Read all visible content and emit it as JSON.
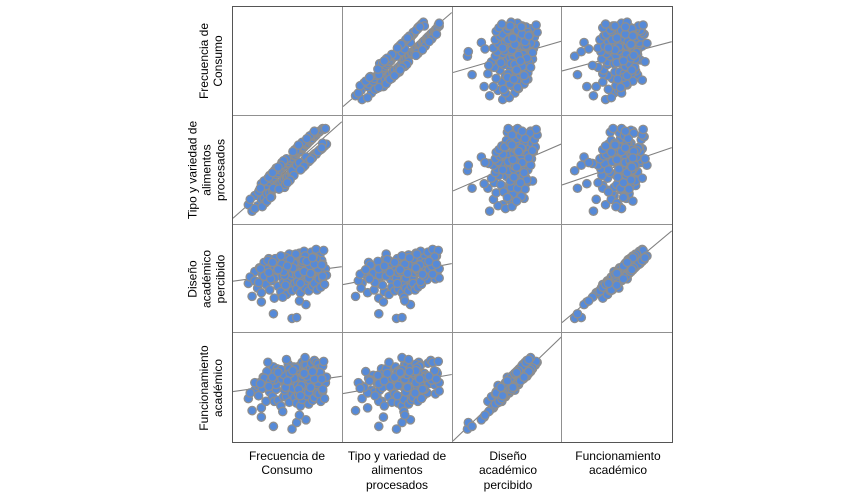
{
  "figure": {
    "row_labels": [
      "Frecuencia de\nConsumo",
      "Tipo y variedad de\nalimentos\nprocesados",
      "Diseño\nacadémico\npercibido",
      "Funcionamiento\nacadémico"
    ],
    "col_labels": [
      "Frecuencia de\nConsumo",
      "Tipo y variedad de\nalimentos\nprocesados",
      "Diseño\nacadémico\npercibido",
      "Funcionamiento\nacadémico"
    ],
    "style": {
      "dot_fill": "#568ad8",
      "dot_stroke": "#8e8e8e",
      "fit_line": "#808080",
      "inner_grid": "#909090",
      "outer_frame": "#555555",
      "label_color": "#000000",
      "background": "#ffffff"
    }
  },
  "chart_data": {
    "type": "scatter",
    "subtype": "scatterplot-matrix",
    "title": "",
    "variables": [
      "Frecuencia de Consumo",
      "Tipo y variedad de alimentos procesados",
      "Diseño académico percibido",
      "Funcionamiento académico"
    ],
    "diagonal": "empty",
    "fit": "linear regression line per off-diagonal panel",
    "axes": {
      "ticks": "none",
      "value_scale": "normalized 0-1 per panel (no tick labels shown)"
    },
    "legend": "none",
    "correlation_summary": {
      "frecuencia_vs_tipo": "strong positive (~0.8)",
      "diseno_vs_funcionamiento": "strong positive (~0.75)",
      "cross_block_pairs": "near zero, slightly positive (flat fit lines)"
    },
    "n": 150,
    "observations": [
      [
        0.08,
        0.12,
        0.45,
        0.38
      ],
      [
        0.12,
        0.05,
        0.31,
        0.25
      ],
      [
        0.15,
        0.22,
        0.58,
        0.47
      ],
      [
        0.18,
        0.11,
        0.4,
        0.52
      ],
      [
        0.2,
        0.28,
        0.62,
        0.55
      ],
      [
        0.22,
        0.18,
        0.35,
        0.28
      ],
      [
        0.24,
        0.3,
        0.5,
        0.61
      ],
      [
        0.25,
        0.19,
        0.68,
        0.6
      ],
      [
        0.27,
        0.33,
        0.44,
        0.35
      ],
      [
        0.28,
        0.24,
        0.56,
        0.63
      ],
      [
        0.3,
        0.37,
        0.72,
        0.64
      ],
      [
        0.31,
        0.25,
        0.38,
        0.45
      ],
      [
        0.33,
        0.4,
        0.6,
        0.52
      ],
      [
        0.34,
        0.28,
        0.48,
        0.4
      ],
      [
        0.35,
        0.42,
        0.66,
        0.72
      ],
      [
        0.36,
        0.3,
        0.29,
        0.35
      ],
      [
        0.38,
        0.45,
        0.55,
        0.48
      ],
      [
        0.39,
        0.33,
        0.63,
        0.7
      ],
      [
        0.4,
        0.47,
        0.42,
        0.36
      ],
      [
        0.41,
        0.35,
        0.58,
        0.65
      ],
      [
        0.42,
        0.5,
        0.7,
        0.63
      ],
      [
        0.43,
        0.36,
        0.36,
        0.3
      ],
      [
        0.44,
        0.52,
        0.52,
        0.58
      ],
      [
        0.45,
        0.38,
        0.64,
        0.57
      ],
      [
        0.46,
        0.54,
        0.46,
        0.4
      ],
      [
        0.47,
        0.4,
        0.59,
        0.66
      ],
      [
        0.48,
        0.55,
        0.74,
        0.68
      ],
      [
        0.49,
        0.41,
        0.33,
        0.4
      ],
      [
        0.5,
        0.57,
        0.57,
        0.5
      ],
      [
        0.5,
        0.43,
        0.49,
        0.56
      ],
      [
        0.51,
        0.58,
        0.68,
        0.75
      ],
      [
        0.52,
        0.44,
        0.41,
        0.34
      ],
      [
        0.53,
        0.6,
        0.61,
        0.55
      ],
      [
        0.54,
        0.46,
        0.53,
        0.6
      ],
      [
        0.55,
        0.62,
        0.76,
        0.7
      ],
      [
        0.55,
        0.47,
        0.37,
        0.43
      ],
      [
        0.56,
        0.63,
        0.56,
        0.49
      ],
      [
        0.57,
        0.48,
        0.65,
        0.72
      ],
      [
        0.58,
        0.65,
        0.45,
        0.39
      ],
      [
        0.58,
        0.5,
        0.6,
        0.67
      ],
      [
        0.59,
        0.66,
        0.71,
        0.62
      ],
      [
        0.6,
        0.51,
        0.39,
        0.33
      ],
      [
        0.6,
        0.68,
        0.54,
        0.6
      ],
      [
        0.61,
        0.52,
        0.67,
        0.59
      ],
      [
        0.62,
        0.69,
        0.47,
        0.42
      ],
      [
        0.62,
        0.53,
        0.62,
        0.69
      ],
      [
        0.63,
        0.7,
        0.78,
        0.73
      ],
      [
        0.64,
        0.55,
        0.35,
        0.3
      ],
      [
        0.64,
        0.71,
        0.58,
        0.52
      ],
      [
        0.65,
        0.56,
        0.5,
        0.57
      ],
      [
        0.66,
        0.73,
        0.69,
        0.77
      ],
      [
        0.66,
        0.57,
        0.43,
        0.37
      ],
      [
        0.67,
        0.74,
        0.63,
        0.56
      ],
      [
        0.68,
        0.58,
        0.55,
        0.62
      ],
      [
        0.68,
        0.75,
        0.8,
        0.74
      ],
      [
        0.69,
        0.59,
        0.4,
        0.46
      ],
      [
        0.7,
        0.77,
        0.59,
        0.51
      ],
      [
        0.7,
        0.6,
        0.66,
        0.74
      ],
      [
        0.71,
        0.78,
        0.48,
        0.41
      ],
      [
        0.72,
        0.61,
        0.61,
        0.68
      ],
      [
        0.72,
        0.79,
        0.73,
        0.65
      ],
      [
        0.73,
        0.62,
        0.37,
        0.32
      ],
      [
        0.74,
        0.81,
        0.56,
        0.63
      ],
      [
        0.74,
        0.63,
        0.68,
        0.61
      ],
      [
        0.75,
        0.82,
        0.49,
        0.44
      ],
      [
        0.75,
        0.64,
        0.64,
        0.71
      ],
      [
        0.76,
        0.83,
        0.79,
        0.76
      ],
      [
        0.77,
        0.65,
        0.42,
        0.36
      ],
      [
        0.77,
        0.84,
        0.6,
        0.54
      ],
      [
        0.78,
        0.66,
        0.52,
        0.59
      ],
      [
        0.79,
        0.86,
        0.71,
        0.79
      ],
      [
        0.79,
        0.67,
        0.45,
        0.39
      ],
      [
        0.8,
        0.87,
        0.65,
        0.58
      ],
      [
        0.8,
        0.68,
        0.57,
        0.64
      ],
      [
        0.81,
        0.88,
        0.82,
        0.77
      ],
      [
        0.82,
        0.69,
        0.38,
        0.44
      ],
      [
        0.82,
        0.9,
        0.62,
        0.53
      ],
      [
        0.83,
        0.7,
        0.67,
        0.75
      ],
      [
        0.84,
        0.91,
        0.5,
        0.43
      ],
      [
        0.84,
        0.71,
        0.63,
        0.7
      ],
      [
        0.85,
        0.92,
        0.75,
        0.67
      ],
      [
        0.86,
        0.72,
        0.41,
        0.35
      ],
      [
        0.86,
        0.93,
        0.58,
        0.65
      ],
      [
        0.87,
        0.73,
        0.7,
        0.62
      ],
      [
        0.88,
        0.95,
        0.51,
        0.46
      ],
      [
        0.88,
        0.74,
        0.66,
        0.73
      ],
      [
        0.89,
        0.94,
        0.81,
        0.78
      ],
      [
        0.9,
        0.76,
        0.44,
        0.38
      ],
      [
        0.91,
        0.95,
        0.61,
        0.55
      ],
      [
        0.92,
        0.78,
        0.54,
        0.61
      ],
      [
        0.1,
        0.18,
        0.52,
        0.44
      ],
      [
        0.55,
        0.49,
        0.07,
        0.05
      ],
      [
        0.6,
        0.55,
        0.08,
        0.12
      ],
      [
        0.35,
        0.3,
        0.12,
        0.08
      ],
      [
        0.22,
        0.35,
        0.25,
        0.18
      ],
      [
        0.7,
        0.64,
        0.22,
        0.15
      ],
      [
        0.15,
        0.08,
        0.48,
        0.55
      ],
      [
        0.45,
        0.57,
        0.3,
        0.24
      ],
      [
        0.52,
        0.38,
        0.77,
        0.7
      ],
      [
        0.63,
        0.58,
        0.26,
        0.2
      ],
      [
        0.33,
        0.21,
        0.65,
        0.58
      ],
      [
        0.76,
        0.88,
        0.55,
        0.62
      ],
      [
        0.29,
        0.41,
        0.7,
        0.77
      ],
      [
        0.58,
        0.72,
        0.63,
        0.57
      ],
      [
        0.47,
        0.31,
        0.54,
        0.47
      ],
      [
        0.69,
        0.55,
        0.75,
        0.82
      ],
      [
        0.38,
        0.52,
        0.59,
        0.53
      ],
      [
        0.81,
        0.67,
        0.72,
        0.66
      ],
      [
        0.26,
        0.14,
        0.57,
        0.5
      ],
      [
        0.66,
        0.8,
        0.68,
        0.61
      ],
      [
        0.49,
        0.62,
        0.73,
        0.8
      ],
      [
        0.73,
        0.59,
        0.51,
        0.45
      ],
      [
        0.31,
        0.44,
        0.62,
        0.56
      ],
      [
        0.85,
        0.72,
        0.59,
        0.66
      ],
      [
        0.41,
        0.29,
        0.69,
        0.63
      ],
      [
        0.61,
        0.75,
        0.47,
        0.52
      ],
      [
        0.23,
        0.1,
        0.55,
        0.49
      ],
      [
        0.78,
        0.9,
        0.74,
        0.68
      ],
      [
        0.36,
        0.49,
        0.51,
        0.58
      ],
      [
        0.67,
        0.53,
        0.7,
        0.64
      ],
      [
        0.44,
        0.58,
        0.66,
        0.59
      ],
      [
        0.88,
        0.79,
        0.53,
        0.48
      ],
      [
        0.28,
        0.16,
        0.6,
        0.67
      ],
      [
        0.59,
        0.71,
        0.77,
        0.71
      ],
      [
        0.48,
        0.34,
        0.43,
        0.5
      ],
      [
        0.74,
        0.87,
        0.64,
        0.58
      ],
      [
        0.19,
        0.26,
        0.46,
        0.41
      ],
      [
        0.65,
        0.51,
        0.57,
        0.52
      ],
      [
        0.37,
        0.5,
        0.72,
        0.66
      ],
      [
        0.83,
        0.7,
        0.61,
        0.55
      ],
      [
        0.25,
        0.38,
        0.53,
        0.6
      ],
      [
        0.57,
        0.44,
        0.67,
        0.6
      ],
      [
        0.46,
        0.6,
        0.58,
        0.64
      ],
      [
        0.71,
        0.84,
        0.69,
        0.62
      ],
      [
        0.32,
        0.2,
        0.5,
        0.57
      ],
      [
        0.62,
        0.77,
        0.55,
        0.48
      ],
      [
        0.53,
        0.39,
        0.71,
        0.65
      ],
      [
        0.79,
        0.92,
        0.66,
        0.59
      ],
      [
        0.21,
        0.3,
        0.61,
        0.54
      ],
      [
        0.68,
        0.54,
        0.58,
        0.65
      ],
      [
        0.43,
        0.55,
        0.75,
        0.69
      ],
      [
        0.87,
        0.74,
        0.65,
        0.59
      ],
      [
        0.3,
        0.42,
        0.57,
        0.51
      ],
      [
        0.56,
        0.7,
        0.62,
        0.68
      ],
      [
        0.5,
        0.36,
        0.64,
        0.57
      ],
      [
        0.77,
        0.63,
        0.73,
        0.67
      ],
      [
        0.34,
        0.47,
        0.68,
        0.61
      ],
      [
        0.64,
        0.5,
        0.45,
        0.41
      ],
      [
        0.4,
        0.53,
        0.6,
        0.66
      ],
      [
        0.75,
        0.61,
        0.56,
        0.5
      ]
    ]
  }
}
